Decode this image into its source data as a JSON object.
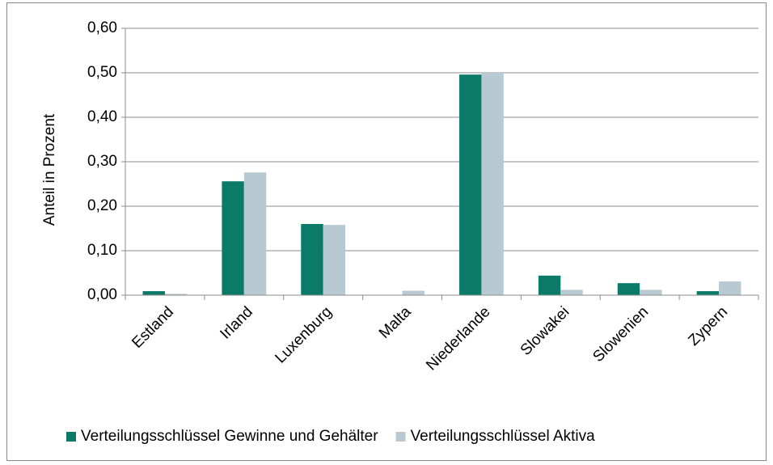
{
  "chart_data": {
    "type": "bar",
    "y_label": "Anteil in Prozent",
    "categories": [
      "Estland",
      "Irland",
      "Luxenburg",
      "Malta",
      "Niederlande",
      "Slowakei",
      "Slowenien",
      "Zypern"
    ],
    "series": [
      {
        "name": "Verteilungsschlüssel Gewinne und Gehälter",
        "color": "#0b7a68",
        "values": [
          0.009,
          0.256,
          0.16,
          0,
          0.496,
          0.044,
          0.027,
          0.009
        ]
      },
      {
        "name": "Verteilungsschlüssel Aktiva",
        "color": "#b9c9d1",
        "values": [
          0.003,
          0.276,
          0.158,
          0.01,
          0.5,
          0.012,
          0.012,
          0.031
        ]
      }
    ],
    "ylim": [
      0,
      0.6
    ],
    "yticks": [
      {
        "value": 0,
        "label": "0,00"
      },
      {
        "value": 0.1,
        "label": "0,10"
      },
      {
        "value": 0.2,
        "label": "0,20"
      },
      {
        "value": 0.3,
        "label": "0,30"
      },
      {
        "value": 0.4,
        "label": "0,40"
      },
      {
        "value": 0.5,
        "label": "0,50"
      },
      {
        "value": 0.6,
        "label": "0,60"
      }
    ],
    "grid": true,
    "legend": "bottom"
  }
}
